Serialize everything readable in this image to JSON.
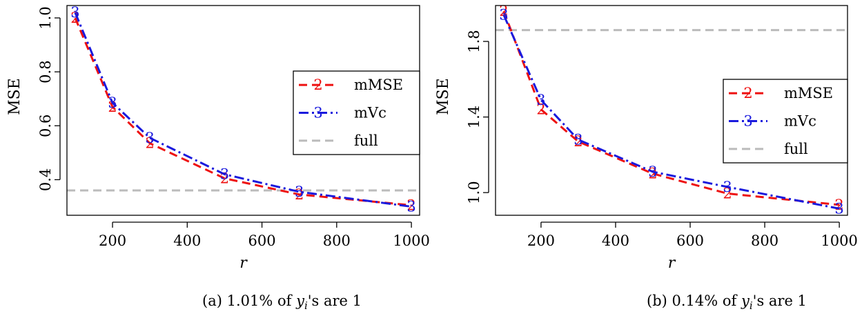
{
  "colors": {
    "mMSE": "#ee1111",
    "mVc": "#1a1add",
    "full": "#bbbbbb"
  },
  "chart_data": [
    {
      "type": "line",
      "caption": "(a) 1.01% of y_i's are 1",
      "caption_prefix": "(a) 1.01% of ",
      "caption_var": "y",
      "caption_sub": "i",
      "caption_suffix": "'s are 1",
      "xlabel": "r",
      "ylabel": "MSE",
      "xlim": [
        78,
        1022
      ],
      "ylim": [
        0.268,
        1.046
      ],
      "xticks": [
        200,
        400,
        600,
        800,
        1000
      ],
      "yticks": [
        0.4,
        0.6,
        0.8,
        1.0
      ],
      "xtick_labels": [
        "200",
        "400",
        "600",
        "800",
        "1000"
      ],
      "ytick_labels": [
        "0.4",
        "0.6",
        "0.8",
        "1.0"
      ],
      "x": [
        100,
        200,
        300,
        500,
        700,
        1000
      ],
      "series": [
        {
          "name": "mMSE",
          "marker": "2",
          "style": "dashed",
          "values": [
            1.0,
            0.67,
            0.535,
            0.405,
            0.345,
            0.305
          ]
        },
        {
          "name": "mVc",
          "marker": "3",
          "style": "dashdot",
          "values": [
            1.02,
            0.685,
            0.555,
            0.42,
            0.355,
            0.3
          ]
        }
      ],
      "hline": {
        "name": "full",
        "value": 0.36
      },
      "legend": {
        "placement": "right",
        "entries": [
          {
            "marker": "2",
            "label": "mMSE"
          },
          {
            "marker": "3",
            "label": "mVc"
          },
          {
            "marker": "",
            "label": "full"
          }
        ]
      }
    },
    {
      "type": "line",
      "caption": "(b) 0.14% of y_i's are 1",
      "caption_prefix": "(b) 0.14% of ",
      "caption_var": "y",
      "caption_sub": "i",
      "caption_suffix": "'s are 1",
      "xlabel": "r",
      "ylabel": "MSE",
      "xlim": [
        78,
        1022
      ],
      "ylim": [
        0.88,
        1.99
      ],
      "xticks": [
        200,
        400,
        600,
        800,
        1000
      ],
      "yticks": [
        1.0,
        1.4,
        1.8
      ],
      "xtick_labels": [
        "200",
        "400",
        "600",
        "800",
        "1000"
      ],
      "ytick_labels": [
        "1.0",
        "1.4",
        "1.8"
      ],
      "x": [
        100,
        200,
        300,
        500,
        700,
        1000
      ],
      "series": [
        {
          "name": "mMSE",
          "marker": "2",
          "style": "dashed",
          "values": [
            1.96,
            1.44,
            1.27,
            1.1,
            0.995,
            0.935
          ]
        },
        {
          "name": "mVc",
          "marker": "3",
          "style": "dashdot",
          "values": [
            1.94,
            1.49,
            1.28,
            1.11,
            1.03,
            0.915
          ]
        }
      ],
      "hline": {
        "name": "full",
        "value": 1.86
      },
      "legend": {
        "placement": "right",
        "entries": [
          {
            "marker": "2",
            "label": "mMSE"
          },
          {
            "marker": "3",
            "label": "mVc"
          },
          {
            "marker": "",
            "label": "full"
          }
        ]
      }
    }
  ]
}
